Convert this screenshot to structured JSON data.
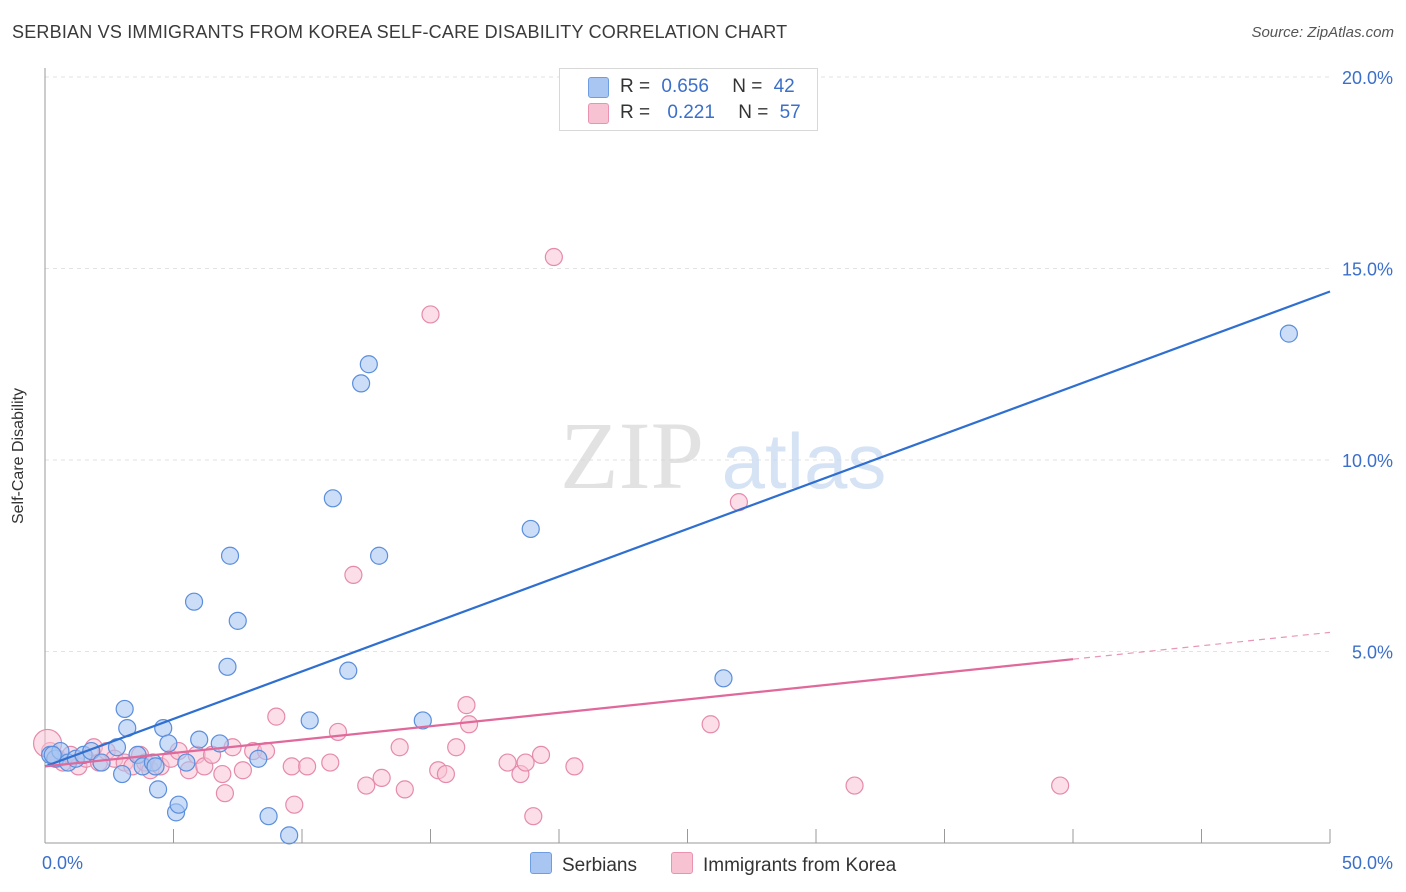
{
  "title": "SERBIAN VS IMMIGRANTS FROM KOREA SELF-CARE DISABILITY CORRELATION CHART",
  "source": "Source: ZipAtlas.com",
  "watermark": {
    "zip": "ZIP",
    "atlas": "atlas"
  },
  "legend": {
    "rows": [
      {
        "r_label": "R =",
        "r_value": "0.656",
        "n_label": "N =",
        "n_value": "42",
        "color": "#a9c6f2",
        "border": "#6f9ee0"
      },
      {
        "r_label": "R =",
        "r_value": "0.221",
        "n_label": "N =",
        "n_value": "57",
        "color": "#f7c3d3",
        "border": "#ea93b1"
      }
    ]
  },
  "bottom_legend": {
    "serbians": "Serbians",
    "korea": "Immigrants from Korea"
  },
  "colors": {
    "serbians_fill": "#a9c6f2",
    "serbians_stroke": "#5b8edc",
    "serbians_line": "#2f6fd0",
    "korea_fill": "#f7c3d3",
    "korea_stroke": "#e68aab",
    "korea_line": "#e0689a",
    "tick": "#3b6fc9",
    "grid": "#e2e2e2"
  },
  "chart_data": {
    "type": "scatter",
    "title": "SERBIAN VS IMMIGRANTS FROM KOREA SELF-CARE DISABILITY CORRELATION CHART",
    "xlabel": "",
    "ylabel": "Self-Care Disability",
    "xlim": [
      0,
      50
    ],
    "ylim": [
      0,
      20
    ],
    "x_tick_labels": [
      {
        "value": 0,
        "label": "0.0%"
      },
      {
        "value": 50,
        "label": "50.0%"
      }
    ],
    "y_tick_labels": [
      {
        "value": 5,
        "label": "5.0%"
      },
      {
        "value": 10,
        "label": "10.0%"
      },
      {
        "value": 15,
        "label": "15.0%"
      },
      {
        "value": 20,
        "label": "20.0%"
      }
    ],
    "y_grid": [
      5,
      10,
      15,
      20
    ],
    "series": [
      {
        "name": "Serbians",
        "r": 0.656,
        "n": 42,
        "trend": {
          "x": [
            0.0,
            50.0
          ],
          "y": [
            2.0,
            14.4
          ]
        },
        "points": [
          [
            0.2,
            2.3
          ],
          [
            0.4,
            2.2
          ],
          [
            0.6,
            2.4
          ],
          [
            0.9,
            2.1
          ],
          [
            1.2,
            2.2
          ],
          [
            1.5,
            2.3
          ],
          [
            1.8,
            2.4
          ],
          [
            2.2,
            2.1
          ],
          [
            2.8,
            2.5
          ],
          [
            3.0,
            1.8
          ],
          [
            3.1,
            3.5
          ],
          [
            3.2,
            3.0
          ],
          [
            3.6,
            2.3
          ],
          [
            3.8,
            2.0
          ],
          [
            4.2,
            2.1
          ],
          [
            4.3,
            2.0
          ],
          [
            4.6,
            3.0
          ],
          [
            4.4,
            1.4
          ],
          [
            4.8,
            2.6
          ],
          [
            5.1,
            0.8
          ],
          [
            5.2,
            1.0
          ],
          [
            5.5,
            2.1
          ],
          [
            5.8,
            6.3
          ],
          [
            6.0,
            2.7
          ],
          [
            6.8,
            2.6
          ],
          [
            7.1,
            4.6
          ],
          [
            7.2,
            7.5
          ],
          [
            7.5,
            5.8
          ],
          [
            8.3,
            2.2
          ],
          [
            8.7,
            0.7
          ],
          [
            9.5,
            0.2
          ],
          [
            10.3,
            3.2
          ],
          [
            11.2,
            9.0
          ],
          [
            11.8,
            4.5
          ],
          [
            12.3,
            12.0
          ],
          [
            12.6,
            12.5
          ],
          [
            13.0,
            7.5
          ],
          [
            14.7,
            3.2
          ],
          [
            18.9,
            8.2
          ],
          [
            26.4,
            4.3
          ],
          [
            48.4,
            13.3
          ],
          [
            0.3,
            2.3
          ]
        ]
      },
      {
        "name": "Immigrants from Korea",
        "r": 0.221,
        "n": 57,
        "trend": {
          "x": [
            0.0,
            40.0
          ],
          "y": [
            2.0,
            4.8
          ]
        },
        "trend_dashed": {
          "x": [
            40.0,
            50.0
          ],
          "y": [
            4.8,
            5.5
          ]
        },
        "points": [
          [
            0.2,
            2.4
          ],
          [
            0.5,
            2.2
          ],
          [
            0.7,
            2.1
          ],
          [
            1.0,
            2.3
          ],
          [
            1.3,
            2.0
          ],
          [
            1.6,
            2.2
          ],
          [
            1.9,
            2.5
          ],
          [
            2.1,
            2.1
          ],
          [
            2.4,
            2.4
          ],
          [
            2.7,
            2.2
          ],
          [
            3.1,
            2.1
          ],
          [
            3.4,
            2.0
          ],
          [
            3.7,
            2.3
          ],
          [
            3.9,
            2.1
          ],
          [
            4.1,
            1.9
          ],
          [
            4.5,
            2.0
          ],
          [
            4.9,
            2.2
          ],
          [
            5.2,
            2.4
          ],
          [
            5.6,
            1.9
          ],
          [
            5.9,
            2.3
          ],
          [
            6.2,
            2.0
          ],
          [
            6.5,
            2.3
          ],
          [
            6.9,
            1.8
          ],
          [
            7.0,
            1.3
          ],
          [
            7.3,
            2.5
          ],
          [
            7.7,
            1.9
          ],
          [
            8.1,
            2.4
          ],
          [
            8.6,
            2.4
          ],
          [
            9.0,
            3.3
          ],
          [
            9.6,
            2.0
          ],
          [
            9.7,
            1.0
          ],
          [
            10.2,
            2.0
          ],
          [
            11.1,
            2.1
          ],
          [
            11.4,
            2.9
          ],
          [
            12.0,
            7.0
          ],
          [
            12.5,
            1.5
          ],
          [
            13.1,
            1.7
          ],
          [
            13.8,
            2.5
          ],
          [
            14.0,
            1.4
          ],
          [
            15.0,
            13.8
          ],
          [
            15.3,
            1.9
          ],
          [
            15.6,
            1.8
          ],
          [
            16.0,
            2.5
          ],
          [
            16.4,
            3.6
          ],
          [
            16.5,
            3.1
          ],
          [
            18.0,
            2.1
          ],
          [
            18.5,
            1.8
          ],
          [
            18.7,
            2.1
          ],
          [
            19.0,
            0.7
          ],
          [
            19.3,
            2.3
          ],
          [
            19.8,
            15.3
          ],
          [
            20.6,
            2.0
          ],
          [
            25.9,
            3.1
          ],
          [
            27.0,
            8.9
          ],
          [
            31.5,
            1.5
          ],
          [
            39.5,
            1.5
          ],
          [
            0.1,
            2.6
          ]
        ]
      }
    ]
  }
}
